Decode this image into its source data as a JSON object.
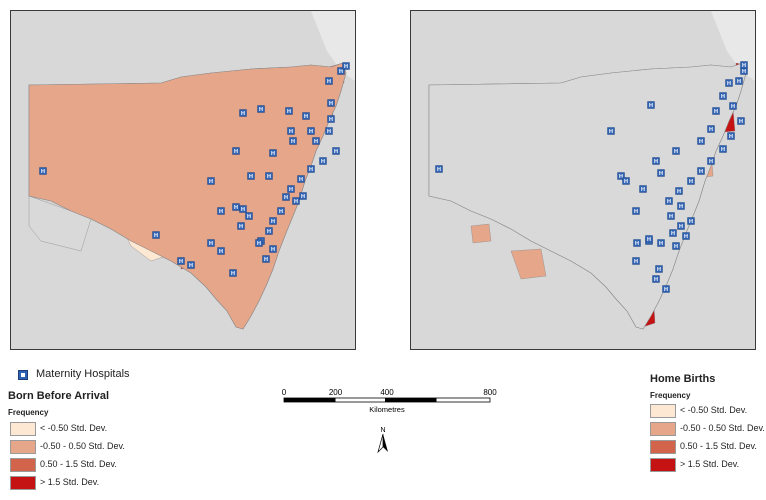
{
  "maps": [
    {
      "id": "born-before-arrival",
      "title": "Born Before Arrival",
      "subtitle": "Frequency",
      "background_color": "#efefef",
      "land_color": "#d9d9d9"
    },
    {
      "id": "home-births",
      "title": "Home Births",
      "subtitle": "Frequency",
      "background_color": "#efefef",
      "land_color": "#d9d9d9"
    }
  ],
  "hospital_legend": {
    "label": "Maternity Hospitals",
    "icon": "hospital-h-icon",
    "marker_letter": "H",
    "color": "#2f62b3"
  },
  "legend_classes": [
    {
      "label": "< -0.50 Std. Dev.",
      "color": "#fde8d4"
    },
    {
      "label": "-0.50 - 0.50 Std. Dev.",
      "color": "#e6a68a"
    },
    {
      "label": "0.50 - 1.5 Std. Dev.",
      "color": "#d2644c"
    },
    {
      "label": "> 1.5 Std. Dev.",
      "color": "#c51212"
    }
  ],
  "scale_bar": {
    "ticks": [
      "0",
      "200",
      "400",
      "800"
    ],
    "tick_values": [
      0,
      200,
      400,
      800
    ],
    "unit": "Kilometres"
  },
  "north_arrow": {
    "label": "N"
  }
}
